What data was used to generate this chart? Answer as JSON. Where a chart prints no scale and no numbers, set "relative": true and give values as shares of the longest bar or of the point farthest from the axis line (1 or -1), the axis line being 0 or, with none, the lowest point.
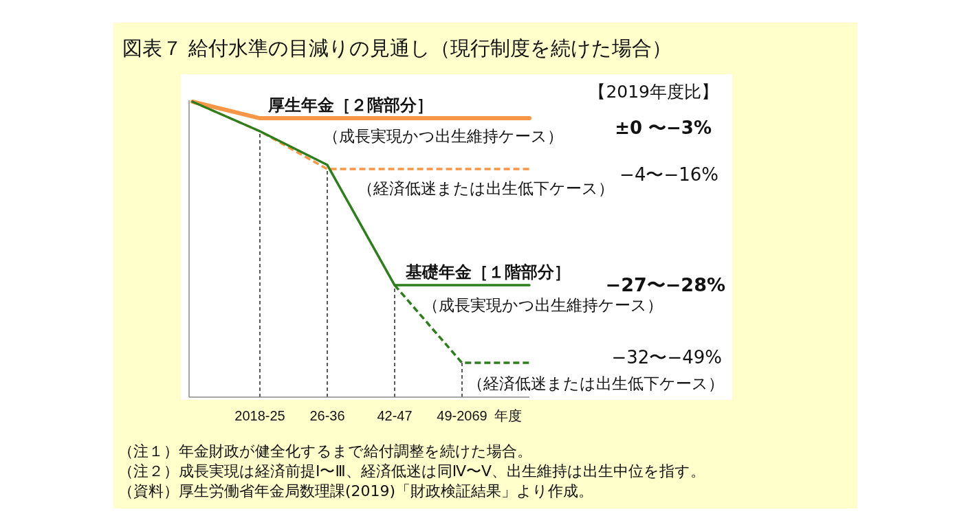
{
  "chart_data": {
    "type": "line",
    "relative": true,
    "title": "図表７ 給付水準の目減りの見通し（現行制度を続けた場合）",
    "xlabel": "年度",
    "categories": [
      null,
      "2018-25",
      "26-36",
      "42-47",
      "49-2069",
      null
    ],
    "series": [
      {
        "color": "#f79646",
        "line_style": "solid",
        "values": [
          1.0,
          0.944,
          0.944,
          0.944,
          0.944,
          0.944
        ]
      },
      {
        "color": "#f79646",
        "line_style": "dashed",
        "values": [
          1.0,
          0.9,
          0.772,
          0.772,
          0.772,
          0.772
        ]
      },
      {
        "color": "#2e7d1e",
        "line_style": "solid",
        "values": [
          1.0,
          0.9,
          0.786,
          0.379,
          0.379,
          0.379
        ]
      },
      {
        "color": "#2e7d1e",
        "line_style": "dashed",
        "values": [
          null,
          null,
          null,
          0.379,
          0.116,
          0.116
        ]
      }
    ],
    "grid": "x",
    "marker": "none",
    "annotations": [
      "厚生年金［２階部分］",
      "（成長実現かつ出生維持ケース）",
      "（経済低迷または出生低下ケース）",
      "基礎年金［１階部分］",
      "（成長実現かつ出生維持ケース）",
      "（経済低迷または出生低下ケース）",
      "【2019年度比】",
      "±0 〜−3%",
      "−4〜−16%",
      "−27〜−28%",
      "−32〜−49%",
      "（注１）年金財政が健全化するまで給付調整を続けた場合。",
      "（注２）成長実現は経済前提Ⅰ〜Ⅲ、経済低迷は同Ⅳ〜Ⅴ、出生維持は出生中位を指す。",
      "（資料）厚生労働省年金局数理課(2019)「財政検証結果」より作成。"
    ]
  }
}
